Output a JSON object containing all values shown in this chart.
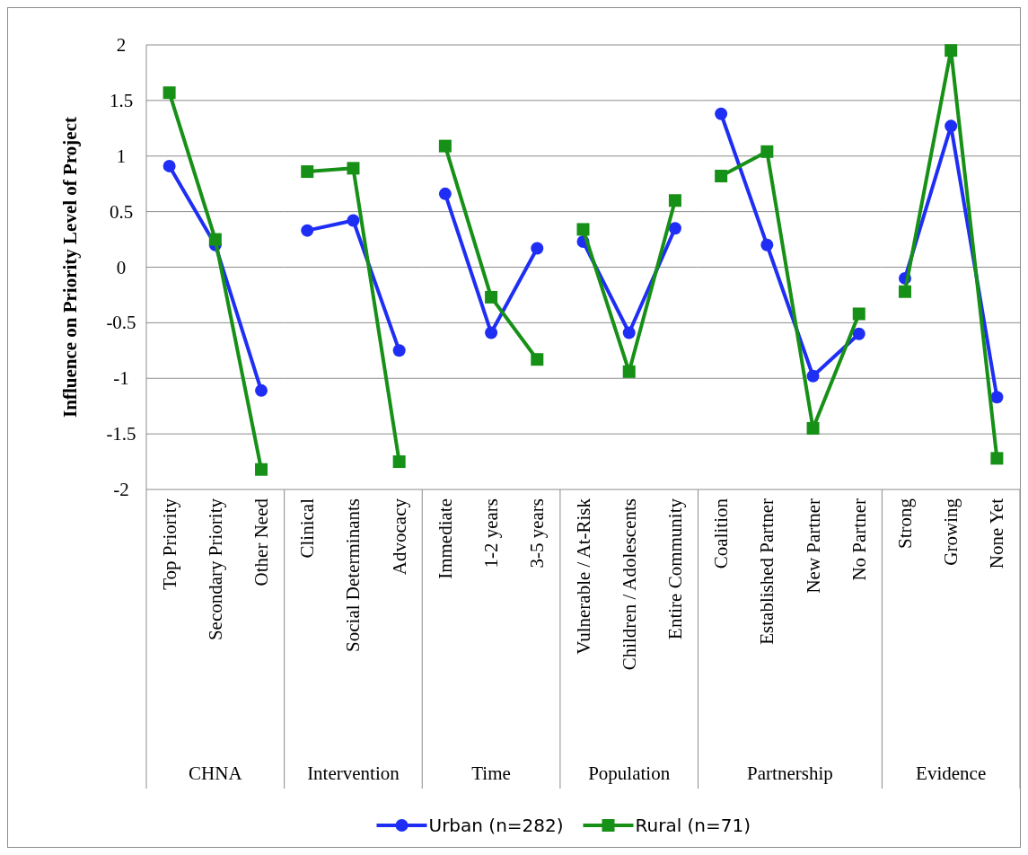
{
  "chart_data": [
    {
      "type": "line",
      "ylabel": "Influence on Priority Level of Project",
      "xlabel": "CHNA",
      "categories": [
        "Top Priority",
        "Secondary Priority",
        "Other Need"
      ],
      "ylim": [
        -2,
        2
      ],
      "yticks": [
        -2,
        -1.5,
        -1,
        -0.5,
        0,
        0.5,
        1,
        1.5,
        2
      ],
      "grid": "y",
      "legend": "bottom",
      "series": [
        {
          "name": "Urban (n=282)",
          "color": "#1f2ef5",
          "marker": "circle",
          "values": [
            0.91,
            0.2,
            -1.11
          ]
        },
        {
          "name": "Rural (n=71)",
          "color": "#169016",
          "marker": "square",
          "values": [
            1.57,
            0.25,
            -1.82
          ]
        }
      ]
    },
    {
      "type": "line",
      "xlabel": "Intervention",
      "categories": [
        "Clinical",
        "Social Determinants",
        "Advocacy"
      ],
      "ylim": [
        -2,
        2
      ],
      "yticks": [
        -2,
        -1.5,
        -1,
        -0.5,
        0,
        0.5,
        1,
        1.5,
        2
      ],
      "grid": "y",
      "tick_labels": "x",
      "series": [
        {
          "color": "#1f2ef5",
          "marker": "circle",
          "values": [
            0.33,
            0.42,
            -0.75
          ]
        },
        {
          "color": "#169016",
          "marker": "square",
          "values": [
            0.86,
            0.89,
            -1.75
          ]
        }
      ]
    },
    {
      "type": "line",
      "xlabel": "Time",
      "categories": [
        "Immediate",
        "1-2 years",
        "3-5 years"
      ],
      "ylim": [
        -2,
        2
      ],
      "yticks": [
        -2,
        -1.5,
        -1,
        -0.5,
        0,
        0.5,
        1,
        1.5,
        2
      ],
      "grid": "y",
      "tick_labels": "x",
      "series": [
        {
          "color": "#1f2ef5",
          "marker": "circle",
          "values": [
            0.66,
            -0.59,
            0.17
          ]
        },
        {
          "color": "#169016",
          "marker": "square",
          "values": [
            1.09,
            -0.27,
            -0.83
          ]
        }
      ]
    },
    {
      "type": "line",
      "xlabel": "Population",
      "categories": [
        "Vulnerable / At-Risk",
        "Children / Adolescents",
        "Entire Community"
      ],
      "ylim": [
        -2,
        2
      ],
      "yticks": [
        -2,
        -1.5,
        -1,
        -0.5,
        0,
        0.5,
        1,
        1.5,
        2
      ],
      "grid": "y",
      "tick_labels": "x",
      "series": [
        {
          "color": "#1f2ef5",
          "marker": "circle",
          "values": [
            0.23,
            -0.59,
            0.35
          ]
        },
        {
          "color": "#169016",
          "marker": "square",
          "values": [
            0.34,
            -0.94,
            0.6
          ]
        }
      ]
    },
    {
      "type": "line",
      "xlabel": "Partnership",
      "categories": [
        "Coalition",
        "Established Partner",
        "New Partner",
        "No Partner"
      ],
      "ylim": [
        -2,
        2
      ],
      "yticks": [
        -2,
        -1.5,
        -1,
        -0.5,
        0,
        0.5,
        1,
        1.5,
        2
      ],
      "grid": "y",
      "tick_labels": "x",
      "series": [
        {
          "color": "#1f2ef5",
          "marker": "circle",
          "values": [
            1.38,
            0.2,
            -0.98,
            -0.6
          ]
        },
        {
          "color": "#169016",
          "marker": "square",
          "values": [
            0.82,
            1.04,
            -1.45,
            -0.42
          ]
        }
      ]
    },
    {
      "type": "line",
      "xlabel": "Evidence",
      "categories": [
        "Strong",
        "Growing",
        "None Yet"
      ],
      "ylim": [
        -2,
        2
      ],
      "yticks": [
        -2,
        -1.5,
        -1,
        -0.5,
        0,
        0.5,
        1,
        1.5,
        2
      ],
      "grid": "y",
      "tick_labels": "x",
      "series": [
        {
          "color": "#1f2ef5",
          "marker": "circle",
          "values": [
            -0.1,
            1.27,
            -1.17
          ]
        },
        {
          "color": "#169016",
          "marker": "square",
          "values": [
            -0.22,
            1.95,
            -1.72
          ]
        }
      ]
    }
  ]
}
